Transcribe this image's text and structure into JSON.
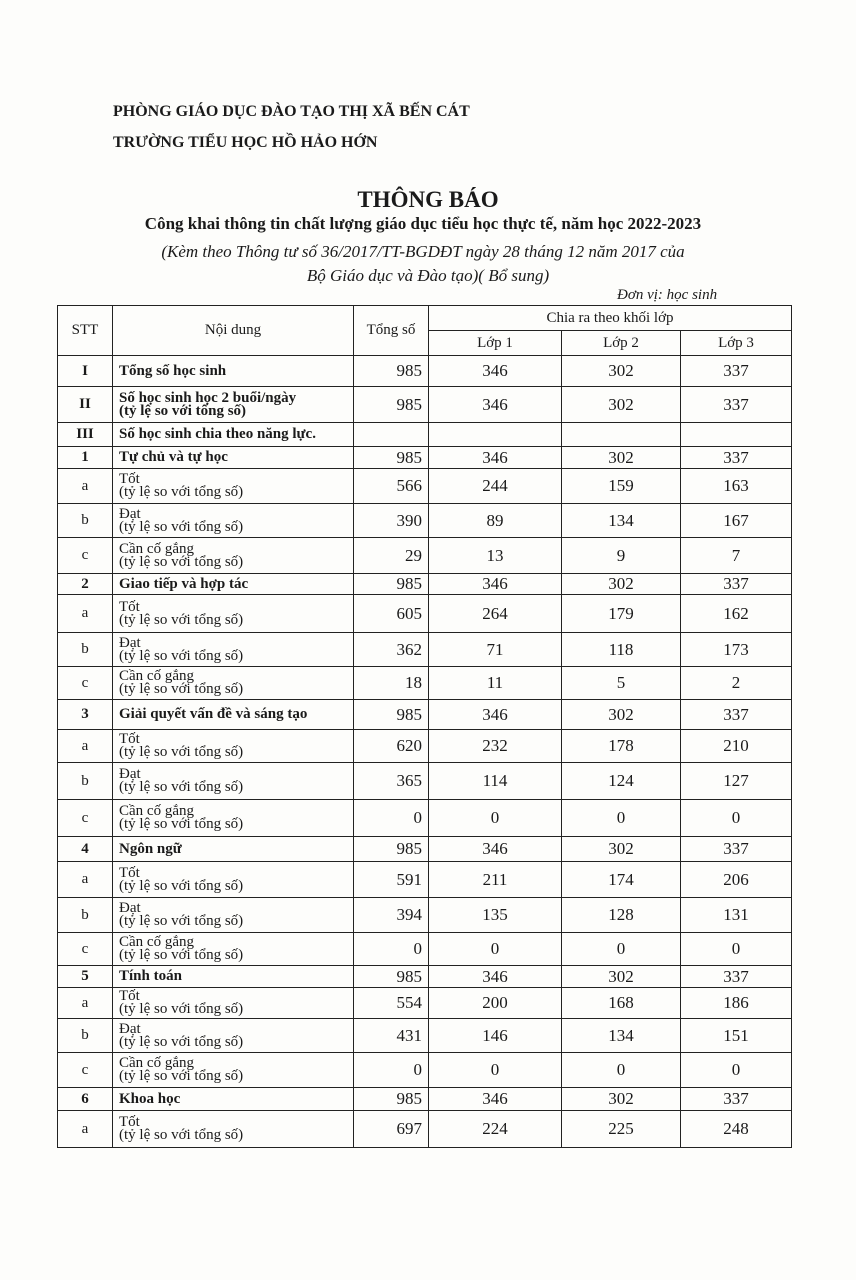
{
  "header": {
    "department": "PHÒNG GIÁO DỤC ĐÀO TẠO THỊ XÃ BẾN CÁT",
    "school": "TRƯỜNG TIỂU HỌC HỒ HẢO HỚN",
    "title": "THÔNG BÁO",
    "subtitle": "Công khai thông tin chất lượng giáo dục tiểu học thực tế, năm học 2022-2023",
    "reference_line1": "(Kèm theo Thông tư số 36/2017/TT-BGDĐT ngày 28 tháng 12 năm 2017 của",
    "reference_line2": "Bộ Giáo dục và Đào tạo)( Bổ sung)",
    "unit": "Đơn vị: học sinh"
  },
  "table": {
    "columns": {
      "stt": "STT",
      "content": "Nội dung",
      "total": "Tổng số",
      "group": "Chia ra theo khối lớp",
      "grades": [
        "Lớp 1",
        "Lớp 2",
        "Lớp 3"
      ]
    },
    "rows": [
      {
        "stt": "I",
        "label": "Tổng số học sinh",
        "bold": true,
        "total": "985",
        "g": [
          "346",
          "302",
          "337"
        ]
      },
      {
        "stt": "II",
        "label": "Số học sinh học 2 buổi/ngày",
        "sub": "(tỷ lệ so với tổng số)",
        "bold": true,
        "total": "985",
        "g": [
          "346",
          "302",
          "337"
        ]
      },
      {
        "stt": "III",
        "label": "Số học sinh chia theo năng lực.",
        "bold": true,
        "total": "",
        "g": [
          "",
          "",
          ""
        ]
      },
      {
        "stt": "1",
        "label": "Tự chủ và tự học",
        "bold": true,
        "total": "985",
        "g": [
          "346",
          "302",
          "337"
        ]
      },
      {
        "stt": "a",
        "label": "Tốt",
        "sub": "(tỷ lệ so với tổng số)",
        "total": "566",
        "g": [
          "244",
          "159",
          "163"
        ]
      },
      {
        "stt": "b",
        "label": "Đạt",
        "sub": "(tỷ lệ so với tổng số)",
        "total": "390",
        "g": [
          "89",
          "134",
          "167"
        ]
      },
      {
        "stt": "c",
        "label": "Cần cố gắng",
        "sub": "(tỷ lệ so với tổng số)",
        "total": "29",
        "g": [
          "13",
          "9",
          "7"
        ]
      },
      {
        "stt": "2",
        "label": "Giao tiếp và hợp tác",
        "bold": true,
        "total": "985",
        "g": [
          "346",
          "302",
          "337"
        ]
      },
      {
        "stt": "a",
        "label": "Tốt",
        "sub": "(tỷ lệ so với tổng số)",
        "total": "605",
        "g": [
          "264",
          "179",
          "162"
        ]
      },
      {
        "stt": "b",
        "label": "Đạt",
        "sub": "(tỷ lệ so với tổng số)",
        "total": "362",
        "g": [
          "71",
          "118",
          "173"
        ]
      },
      {
        "stt": "c",
        "label": "Cần cố gắng",
        "sub": "(tỷ lệ so với tổng số)",
        "total": "18",
        "g": [
          "11",
          "5",
          "2"
        ]
      },
      {
        "stt": "3",
        "label": "Giải quyết vấn đề và sáng tạo",
        "bold": true,
        "total": "985",
        "g": [
          "346",
          "302",
          "337"
        ]
      },
      {
        "stt": "a",
        "label": "Tốt",
        "sub": "(tỷ lệ so với tổng số)",
        "total": "620",
        "g": [
          "232",
          "178",
          "210"
        ]
      },
      {
        "stt": "b",
        "label": "Đạt",
        "sub": "(tỷ lệ so với tổng số)",
        "total": "365",
        "g": [
          "114",
          "124",
          "127"
        ]
      },
      {
        "stt": "c",
        "label": "Cần cố gắng",
        "sub": "(tỷ lệ so với tổng số)",
        "total": "0",
        "g": [
          "0",
          "0",
          "0"
        ]
      },
      {
        "stt": "4",
        "label": "Ngôn ngữ",
        "bold": true,
        "total": "985",
        "g": [
          "346",
          "302",
          "337"
        ]
      },
      {
        "stt": "a",
        "label": "Tốt",
        "sub": "(tỷ lệ so với tổng số)",
        "total": "591",
        "g": [
          "211",
          "174",
          "206"
        ]
      },
      {
        "stt": "b",
        "label": "Đạt",
        "sub": "(tỷ lệ so với tổng số)",
        "total": "394",
        "g": [
          "135",
          "128",
          "131"
        ]
      },
      {
        "stt": "c",
        "label": "Cần cố gắng",
        "sub": "(tỷ lệ so với tổng số)",
        "total": "0",
        "g": [
          "0",
          "0",
          "0"
        ]
      },
      {
        "stt": "5",
        "label": "Tính toán",
        "bold": true,
        "total": "985",
        "g": [
          "346",
          "302",
          "337"
        ]
      },
      {
        "stt": "a",
        "label": "Tốt",
        "sub": "(tỷ lệ so với tổng số)",
        "total": "554",
        "g": [
          "200",
          "168",
          "186"
        ]
      },
      {
        "stt": "b",
        "label": "Đạt",
        "sub": "(tỷ lệ so với tổng số)",
        "total": "431",
        "g": [
          "146",
          "134",
          "151"
        ]
      },
      {
        "stt": "c",
        "label": "Cần cố gắng",
        "sub": "(tỷ lệ so với tổng số)",
        "total": "0",
        "g": [
          "0",
          "0",
          "0"
        ]
      },
      {
        "stt": "6",
        "label": "Khoa học",
        "bold": true,
        "total": "985",
        "g": [
          "346",
          "302",
          "337"
        ]
      },
      {
        "stt": "a",
        "label": "Tốt",
        "sub": "(tỷ lệ so với tổng số)",
        "total": "697",
        "g": [
          "224",
          "225",
          "248"
        ]
      }
    ]
  }
}
